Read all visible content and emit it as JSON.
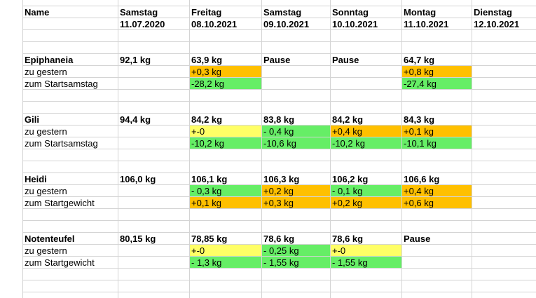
{
  "sheet": {
    "colors": {
      "orange": "#ffc000",
      "green": "#66ee66",
      "yellow": "#ffff66",
      "grid": "#d4d4d4"
    },
    "header": {
      "name": "Name",
      "days": [
        {
          "day": "Samstag",
          "date": "11.07.2020"
        },
        {
          "day": "Freitag",
          "date": "08.10.2021"
        },
        {
          "day": "Samstag",
          "date": "09.10.2021"
        },
        {
          "day": "Sonntag",
          "date": "10.10.2021"
        },
        {
          "day": "Montag",
          "date": "11.10.2021"
        },
        {
          "day": "Dienstag",
          "date": "12.10.2021"
        }
      ]
    },
    "blocks": [
      {
        "name": "Epiphaneia",
        "rows": [
          {
            "label": "",
            "bold": true,
            "cells": [
              {
                "v": "92,1 kg"
              },
              {
                "v": "63,9 kg"
              },
              {
                "v": "Pause"
              },
              {
                "v": "Pause"
              },
              {
                "v": "64,7 kg"
              },
              {
                "v": ""
              }
            ]
          },
          {
            "label": "zu gestern",
            "cells": [
              {
                "v": ""
              },
              {
                "v": "+0,3 kg",
                "c": "orange"
              },
              {
                "v": ""
              },
              {
                "v": ""
              },
              {
                "v": "+0,8 kg",
                "c": "orange"
              },
              {
                "v": ""
              }
            ]
          },
          {
            "label": "zum Startsamstag",
            "cells": [
              {
                "v": ""
              },
              {
                "v": "-28,2 kg",
                "c": "green"
              },
              {
                "v": ""
              },
              {
                "v": ""
              },
              {
                "v": "-27,4 kg",
                "c": "green"
              },
              {
                "v": ""
              }
            ]
          }
        ]
      },
      {
        "name": "Gili",
        "rows": [
          {
            "label": "",
            "bold": true,
            "cells": [
              {
                "v": "94,4 kg"
              },
              {
                "v": "84,2 kg"
              },
              {
                "v": "83,8 kg"
              },
              {
                "v": "84,2 kg"
              },
              {
                "v": "84,3 kg"
              },
              {
                "v": ""
              }
            ]
          },
          {
            "label": "zu gestern",
            "cells": [
              {
                "v": ""
              },
              {
                "v": "+-0",
                "c": "yellow"
              },
              {
                "v": "- 0,4 kg",
                "c": "green"
              },
              {
                "v": "+0,4 kg",
                "c": "orange"
              },
              {
                "v": "+0,1 kg",
                "c": "orange"
              },
              {
                "v": ""
              }
            ]
          },
          {
            "label": "zum Startsamstag",
            "cells": [
              {
                "v": ""
              },
              {
                "v": "-10,2 kg",
                "c": "green"
              },
              {
                "v": "-10,6 kg",
                "c": "green"
              },
              {
                "v": "-10,2 kg",
                "c": "green"
              },
              {
                "v": "-10,1 kg",
                "c": "green"
              },
              {
                "v": ""
              }
            ]
          }
        ]
      },
      {
        "name": "Heidi",
        "rows": [
          {
            "label": "",
            "bold": true,
            "cells": [
              {
                "v": "106,0 kg"
              },
              {
                "v": "106,1 kg"
              },
              {
                "v": "106,3 kg"
              },
              {
                "v": "106,2 kg"
              },
              {
                "v": "106,6 kg"
              },
              {
                "v": ""
              }
            ]
          },
          {
            "label": "zu gestern",
            "cells": [
              {
                "v": ""
              },
              {
                "v": "- 0,3 kg",
                "c": "green"
              },
              {
                "v": "+0,2 kg",
                "c": "orange"
              },
              {
                "v": "- 0,1 kg",
                "c": "green"
              },
              {
                "v": "+0,4 kg",
                "c": "orange"
              },
              {
                "v": ""
              }
            ]
          },
          {
            "label": "zum Startgewicht",
            "cells": [
              {
                "v": ""
              },
              {
                "v": "+0,1 kg",
                "c": "orange"
              },
              {
                "v": "+0,3 kg",
                "c": "orange"
              },
              {
                "v": "+0,2 kg",
                "c": "orange"
              },
              {
                "v": "+0,6 kg",
                "c": "orange"
              },
              {
                "v": ""
              }
            ]
          }
        ]
      },
      {
        "name": "Notenteufel",
        "rows": [
          {
            "label": "",
            "bold": true,
            "cells": [
              {
                "v": "80,15 kg"
              },
              {
                "v": "78,85 kg"
              },
              {
                "v": "78,6 kg"
              },
              {
                "v": "78,6 kg"
              },
              {
                "v": "Pause"
              },
              {
                "v": ""
              }
            ]
          },
          {
            "label": "zu gestern",
            "cells": [
              {
                "v": ""
              },
              {
                "v": "+-0",
                "c": "yellow"
              },
              {
                "v": "- 0,25 kg",
                "c": "green"
              },
              {
                "v": "+-0",
                "c": "yellow"
              },
              {
                "v": ""
              },
              {
                "v": ""
              }
            ]
          },
          {
            "label": "zum Startgewicht",
            "cells": [
              {
                "v": ""
              },
              {
                "v": "- 1,3 kg",
                "c": "green"
              },
              {
                "v": "- 1,55 kg",
                "c": "green"
              },
              {
                "v": "- 1,55 kg",
                "c": "green"
              },
              {
                "v": ""
              },
              {
                "v": ""
              }
            ]
          }
        ]
      }
    ]
  }
}
